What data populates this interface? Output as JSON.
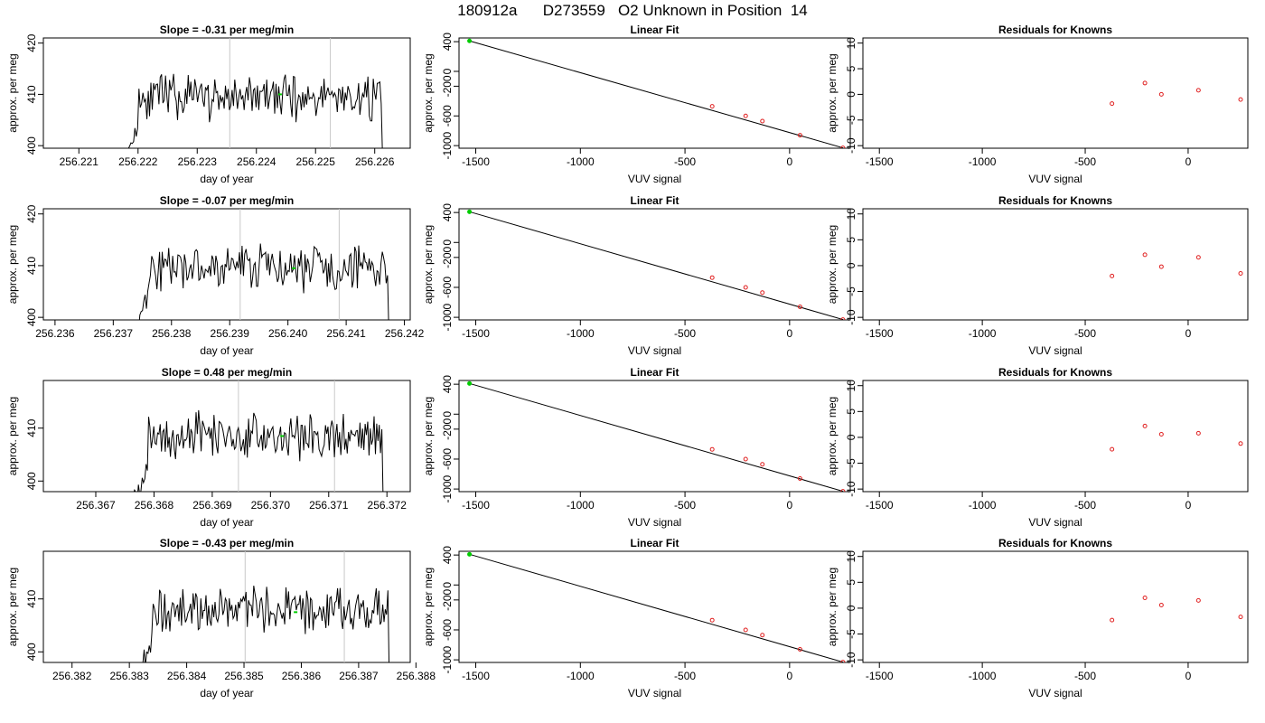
{
  "figure": {
    "title": "180912a      D273559   O2 Unknown in Position  14"
  },
  "colors": {
    "known": "#e02020",
    "unknown": "#00cc00",
    "line": "#000000",
    "marker_line": "#c8c8c8"
  },
  "chart_data": [
    {
      "panel": "time_series",
      "type": "line",
      "title": "Slope =  -0.31  per meg/min",
      "xlabel": "day of year",
      "ylabel": "approx. per meg",
      "xlim": [
        256.2204,
        256.2266
      ],
      "ylim": [
        399.5,
        421
      ],
      "xticks": [
        "256.221",
        "256.222",
        "256.223",
        "256.224",
        "256.225",
        "256.226"
      ],
      "yticks": [
        "400",
        "410",
        "420"
      ],
      "start": 256.2217,
      "end": 256.2262,
      "mean": 409.5,
      "seed": 11,
      "vlines": [
        256.22355,
        256.22525
      ],
      "unknown_point": [
        256.2244,
        410.0
      ]
    },
    {
      "panel": "linear_fit",
      "type": "scatter",
      "title": "Linear Fit",
      "xlabel": "VUV signal",
      "ylabel": "approx. per meg",
      "xlim": [
        -1580,
        290
      ],
      "ylim": [
        -1035,
        450
      ],
      "xticks": [
        "-1500",
        "-1000",
        "-500",
        "0"
      ],
      "yticks": [
        "-1000",
        "-600",
        "-200",
        "0",
        "400"
      ],
      "known": [
        [
          -370,
          -470
        ],
        [
          -210,
          -600
        ],
        [
          -130,
          -670
        ],
        [
          50,
          -860
        ],
        [
          255,
          -1030
        ]
      ],
      "unknown": [
        [
          -1530,
          410
        ]
      ],
      "fit": [
        [
          -1530,
          410
        ],
        [
          255,
          -1030
        ]
      ]
    },
    {
      "panel": "residuals",
      "type": "scatter",
      "title": "Residuals for Knowns",
      "xlabel": "VUV signal",
      "ylabel": "approx. per meg",
      "xlim": [
        -1580,
        290
      ],
      "ylim": [
        -10.5,
        11
      ],
      "xticks": [
        "-1500",
        "-1000",
        "-500",
        "0"
      ],
      "yticks": [
        "-10",
        "-5",
        "0",
        "5",
        "10"
      ],
      "known": [
        [
          -370,
          -1.8
        ],
        [
          -210,
          2.2
        ],
        [
          -130,
          0.0
        ],
        [
          50,
          0.8
        ],
        [
          255,
          -1.0
        ]
      ]
    },
    {
      "panel": "time_series",
      "type": "line",
      "title": "Slope =  -0.07  per meg/min",
      "xlabel": "day of year",
      "ylabel": "approx. per meg",
      "xlim": [
        256.2358,
        256.2421
      ],
      "ylim": [
        399.5,
        421
      ],
      "xticks": [
        "256.236",
        "256.237",
        "256.238",
        "256.239",
        "256.240",
        "256.241",
        "256.242"
      ],
      "yticks": [
        "400",
        "410",
        "420"
      ],
      "start": 256.2373,
      "end": 256.2418,
      "mean": 409.5,
      "seed": 23,
      "vlines": [
        256.23918,
        256.24088
      ],
      "unknown_point": [
        256.2401,
        409.5
      ]
    },
    {
      "panel": "linear_fit",
      "type": "scatter",
      "title": "Linear Fit",
      "xlabel": "VUV signal",
      "ylabel": "approx. per meg",
      "xlim": [
        -1580,
        290
      ],
      "ylim": [
        -1035,
        450
      ],
      "xticks": [
        "-1500",
        "-1000",
        "-500",
        "0"
      ],
      "yticks": [
        "-1000",
        "-600",
        "-200",
        "0",
        "400"
      ],
      "known": [
        [
          -370,
          -470
        ],
        [
          -210,
          -600
        ],
        [
          -130,
          -670
        ],
        [
          50,
          -860
        ],
        [
          255,
          -1030
        ]
      ],
      "unknown": [
        [
          -1530,
          410
        ]
      ],
      "fit": [
        [
          -1530,
          410
        ],
        [
          255,
          -1030
        ]
      ]
    },
    {
      "panel": "residuals",
      "type": "scatter",
      "title": "Residuals for Knowns",
      "xlabel": "VUV signal",
      "ylabel": "approx. per meg",
      "xlim": [
        -1580,
        290
      ],
      "ylim": [
        -10.5,
        11
      ],
      "xticks": [
        "-1500",
        "-1000",
        "-500",
        "0"
      ],
      "yticks": [
        "-10",
        "-5",
        "0",
        "5",
        "10"
      ],
      "known": [
        [
          -370,
          -2.0
        ],
        [
          -210,
          2.1
        ],
        [
          -130,
          -0.2
        ],
        [
          50,
          1.6
        ],
        [
          255,
          -1.5
        ]
      ]
    },
    {
      "panel": "time_series",
      "type": "line",
      "title": "Slope =  0.48  per meg/min",
      "xlabel": "day of year",
      "ylabel": "approx. per meg",
      "xlim": [
        256.3661,
        256.3724
      ],
      "ylim": [
        398,
        419
      ],
      "xticks": [
        "256.367",
        "256.368",
        "256.369",
        "256.370",
        "256.371",
        "256.372"
      ],
      "yticks": [
        "400",
        "410"
      ],
      "start": 256.3676,
      "end": 256.372,
      "mean": 408.5,
      "seed": 37,
      "vlines": [
        256.36945,
        256.3711
      ],
      "unknown_point": [
        256.3702,
        408.5
      ]
    },
    {
      "panel": "linear_fit",
      "type": "scatter",
      "title": "Linear Fit",
      "xlabel": "VUV signal",
      "ylabel": "approx. per meg",
      "xlim": [
        -1580,
        290
      ],
      "ylim": [
        -1035,
        450
      ],
      "xticks": [
        "-1500",
        "-1000",
        "-500",
        "0"
      ],
      "yticks": [
        "-1000",
        "-600",
        "-200",
        "0",
        "400"
      ],
      "known": [
        [
          -370,
          -470
        ],
        [
          -210,
          -600
        ],
        [
          -130,
          -670
        ],
        [
          50,
          -860
        ],
        [
          255,
          -1030
        ]
      ],
      "unknown": [
        [
          -1530,
          410
        ]
      ],
      "fit": [
        [
          -1530,
          410
        ],
        [
          255,
          -1030
        ]
      ]
    },
    {
      "panel": "residuals",
      "type": "scatter",
      "title": "Residuals for Knowns",
      "xlabel": "VUV signal",
      "ylabel": "approx. per meg",
      "xlim": [
        -1580,
        290
      ],
      "ylim": [
        -10.5,
        11
      ],
      "xticks": [
        "-1500",
        "-1000",
        "-500",
        "0"
      ],
      "yticks": [
        "-10",
        "-5",
        "0",
        "5",
        "10"
      ],
      "known": [
        [
          -370,
          -2.3
        ],
        [
          -210,
          2.2
        ],
        [
          -130,
          0.6
        ],
        [
          50,
          0.8
        ],
        [
          255,
          -1.2
        ]
      ]
    },
    {
      "panel": "time_series",
      "type": "line",
      "title": "Slope =  -0.43  per meg/min",
      "xlabel": "day of year",
      "ylabel": "approx. per meg",
      "xlim": [
        256.3815,
        256.3879
      ],
      "ylim": [
        398,
        419
      ],
      "xticks": [
        "256.382",
        "256.383",
        "256.384",
        "256.385",
        "256.386",
        "256.387",
        "256.388"
      ],
      "yticks": [
        "400",
        "410"
      ],
      "start": 256.3831,
      "end": 256.3876,
      "mean": 408.0,
      "seed": 53,
      "vlines": [
        256.38502,
        256.38675
      ],
      "unknown_point": [
        256.3859,
        407.5
      ]
    },
    {
      "panel": "linear_fit",
      "type": "scatter",
      "title": "Linear Fit",
      "xlabel": "VUV signal",
      "ylabel": "approx. per meg",
      "xlim": [
        -1580,
        290
      ],
      "ylim": [
        -1035,
        450
      ],
      "xticks": [
        "-1500",
        "-1000",
        "-500",
        "0"
      ],
      "yticks": [
        "-1000",
        "-600",
        "-200",
        "0",
        "400"
      ],
      "known": [
        [
          -370,
          -470
        ],
        [
          -210,
          -600
        ],
        [
          -130,
          -670
        ],
        [
          50,
          -860
        ],
        [
          255,
          -1030
        ]
      ],
      "unknown": [
        [
          -1530,
          410
        ]
      ],
      "fit": [
        [
          -1530,
          410
        ],
        [
          255,
          -1030
        ]
      ]
    },
    {
      "panel": "residuals",
      "type": "scatter",
      "title": "Residuals for Knowns",
      "xlabel": "VUV signal",
      "ylabel": "approx. per meg",
      "xlim": [
        -1580,
        290
      ],
      "ylim": [
        -10.5,
        11
      ],
      "xticks": [
        "-1500",
        "-1000",
        "-500",
        "0"
      ],
      "yticks": [
        "-10",
        "-5",
        "0",
        "5",
        "10"
      ],
      "known": [
        [
          -370,
          -2.3
        ],
        [
          -210,
          2.0
        ],
        [
          -130,
          0.6
        ],
        [
          50,
          1.5
        ],
        [
          255,
          -1.7
        ]
      ]
    }
  ]
}
